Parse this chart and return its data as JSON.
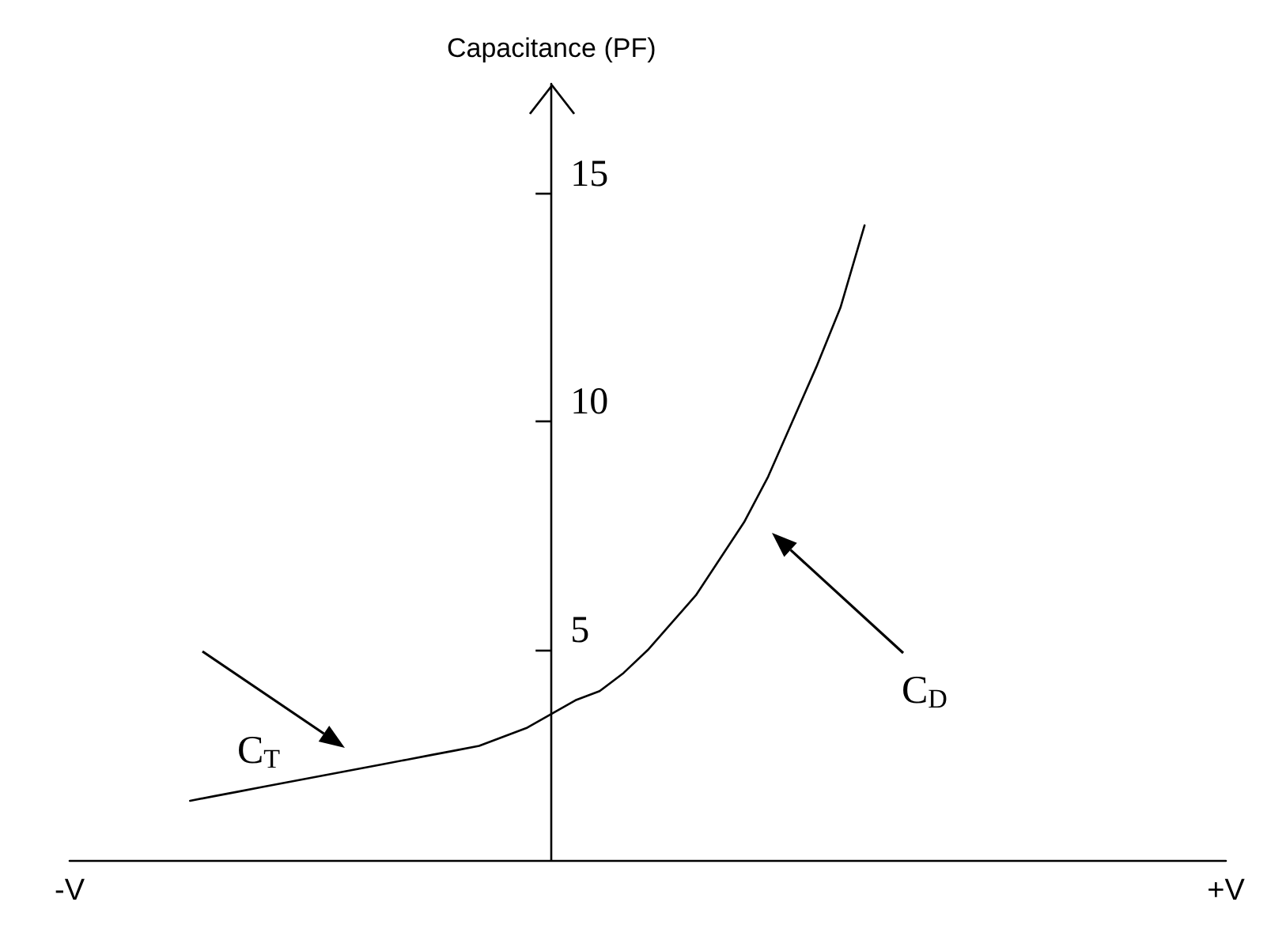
{
  "chart_data": {
    "type": "line",
    "ylabel": "Capacitance (PF)",
    "categories": [
      "-V",
      null,
      null,
      null,
      null,
      null,
      null,
      null,
      null,
      null,
      null,
      null,
      null,
      null,
      null,
      null,
      null,
      null,
      null,
      null,
      null,
      null,
      null,
      null,
      null,
      null,
      null,
      null,
      null,
      null,
      null,
      null,
      null,
      null,
      null,
      null,
      null,
      null,
      null,
      null,
      null,
      null,
      null,
      null,
      null,
      null,
      null,
      null,
      "+V"
    ],
    "series": [
      {
        "color": "#000000",
        "values": [
          null,
          null,
          null,
          null,
          null,
          1.7,
          1.8,
          1.9,
          2.0,
          2.1,
          2.2,
          2.3,
          2.4,
          2.5,
          2.6,
          2.7,
          2.8,
          2.9,
          3.1,
          3.3,
          3.6,
          3.9,
          4.1,
          4.5,
          5.0,
          5.6,
          6.2,
          7.0,
          7.8,
          8.8,
          10.0,
          11.2,
          12.5,
          14.3,
          null,
          null,
          null,
          null,
          null,
          null,
          null,
          null,
          null,
          null,
          null,
          null,
          null,
          null,
          null
        ]
      }
    ],
    "ylim": [
      0.4,
      17.4
    ],
    "yticks": [
      5,
      10,
      15
    ],
    "annotations": [
      "C$_{T}$",
      "C$_{D}$"
    ],
    "marker": "none",
    "line_style": "solid",
    "grid": false
  }
}
